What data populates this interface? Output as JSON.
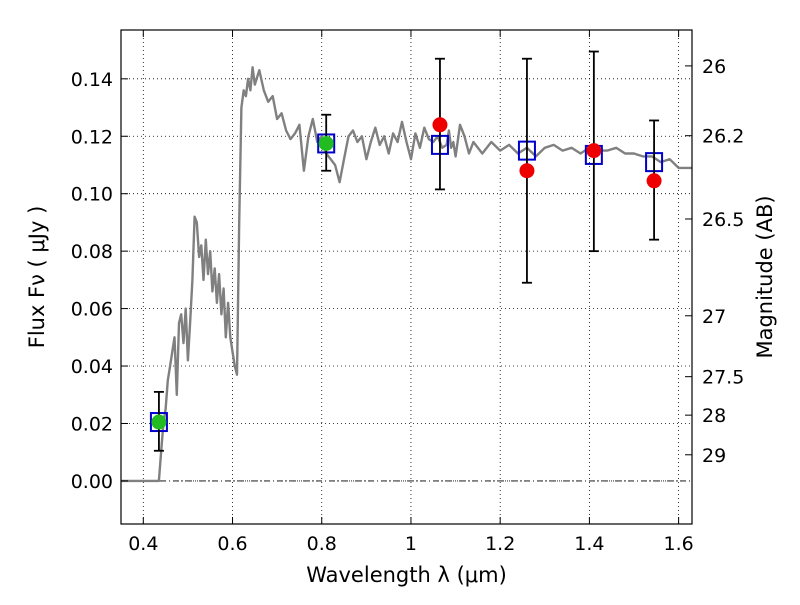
{
  "chart_data": {
    "type": "scatter",
    "xlabel": "Wavelength  λ (μm)",
    "ylabel": "Flux  Fν  ( μJy )",
    "right_ylabel": "Magnitude (AB)",
    "xlim": [
      0.35,
      1.63
    ],
    "ylim": [
      -0.015,
      0.157
    ],
    "grid": true,
    "x_ticks": [
      0.4,
      0.6,
      0.8,
      1.0,
      1.2,
      1.4,
      1.6
    ],
    "x_tick_labels": [
      "0.4",
      "0.6",
      "0.8",
      "1",
      "1.2",
      "1.4",
      "1.6"
    ],
    "y_ticks": [
      0.0,
      0.02,
      0.04,
      0.06,
      0.08,
      0.1,
      0.12,
      0.14
    ],
    "y_tick_labels": [
      "0.00",
      "0.02",
      "0.04",
      "0.06",
      "0.08",
      "0.10",
      "0.12",
      "0.14"
    ],
    "right_ticks": [
      {
        "label": "26",
        "flux": 0.1445
      },
      {
        "label": "26.2",
        "flux": 0.1202
      },
      {
        "label": "26.5",
        "flux": 0.0912
      },
      {
        "label": "27",
        "flux": 0.0575
      },
      {
        "label": "27.5",
        "flux": 0.0363
      },
      {
        "label": "28",
        "flux": 0.0229
      },
      {
        "label": "29",
        "flux": 0.0091
      }
    ],
    "zero_line": 0.0,
    "series": [
      {
        "style": "line",
        "color": "#808080",
        "x": [
          0.35,
          0.38,
          0.4,
          0.42,
          0.43,
          0.435,
          0.44,
          0.445,
          0.45,
          0.455,
          0.46,
          0.465,
          0.47,
          0.475,
          0.48,
          0.485,
          0.49,
          0.495,
          0.5,
          0.505,
          0.51,
          0.515,
          0.52,
          0.525,
          0.53,
          0.535,
          0.54,
          0.545,
          0.55,
          0.555,
          0.56,
          0.565,
          0.57,
          0.575,
          0.58,
          0.585,
          0.59,
          0.595,
          0.6,
          0.605,
          0.61,
          0.615,
          0.62,
          0.625,
          0.63,
          0.635,
          0.64,
          0.645,
          0.65,
          0.66,
          0.67,
          0.68,
          0.69,
          0.7,
          0.71,
          0.72,
          0.73,
          0.74,
          0.75,
          0.76,
          0.77,
          0.78,
          0.79,
          0.8,
          0.81,
          0.82,
          0.83,
          0.84,
          0.85,
          0.86,
          0.87,
          0.88,
          0.89,
          0.9,
          0.91,
          0.92,
          0.93,
          0.94,
          0.95,
          0.96,
          0.97,
          0.98,
          0.99,
          1.0,
          1.01,
          1.02,
          1.03,
          1.04,
          1.05,
          1.06,
          1.07,
          1.08,
          1.085,
          1.09,
          1.095,
          1.1,
          1.11,
          1.12,
          1.13,
          1.14,
          1.16,
          1.18,
          1.2,
          1.22,
          1.24,
          1.26,
          1.28,
          1.3,
          1.32,
          1.34,
          1.36,
          1.38,
          1.4,
          1.42,
          1.44,
          1.46,
          1.48,
          1.5,
          1.52,
          1.54,
          1.56,
          1.58,
          1.6,
          1.62,
          1.63
        ],
        "y": [
          0.0,
          0.0,
          0.0,
          0.0,
          0.0,
          0.0,
          0.01,
          0.02,
          0.025,
          0.035,
          0.04,
          0.045,
          0.05,
          0.03,
          0.055,
          0.058,
          0.048,
          0.06,
          0.042,
          0.055,
          0.07,
          0.092,
          0.09,
          0.078,
          0.082,
          0.07,
          0.084,
          0.072,
          0.08,
          0.066,
          0.074,
          0.062,
          0.072,
          0.058,
          0.067,
          0.05,
          0.062,
          0.05,
          0.045,
          0.04,
          0.037,
          0.09,
          0.13,
          0.136,
          0.134,
          0.14,
          0.136,
          0.144,
          0.138,
          0.143,
          0.136,
          0.132,
          0.134,
          0.126,
          0.128,
          0.122,
          0.119,
          0.121,
          0.124,
          0.108,
          0.12,
          0.126,
          0.118,
          0.12,
          0.114,
          0.112,
          0.11,
          0.104,
          0.112,
          0.12,
          0.122,
          0.118,
          0.12,
          0.112,
          0.118,
          0.123,
          0.117,
          0.12,
          0.114,
          0.121,
          0.118,
          0.125,
          0.118,
          0.112,
          0.121,
          0.116,
          0.123,
          0.119,
          0.118,
          0.12,
          0.116,
          0.117,
          0.122,
          0.116,
          0.118,
          0.113,
          0.124,
          0.12,
          0.114,
          0.118,
          0.114,
          0.118,
          0.115,
          0.117,
          0.114,
          0.116,
          0.113,
          0.116,
          0.117,
          0.115,
          0.116,
          0.114,
          0.116,
          0.115,
          0.115,
          0.116,
          0.114,
          0.114,
          0.113,
          0.113,
          0.111,
          0.112,
          0.109,
          0.109,
          0.109
        ]
      },
      {
        "style": "squares",
        "color": "#0000cc",
        "x": [
          0.435,
          0.81,
          1.065,
          1.26,
          1.41,
          1.545
        ],
        "y": [
          0.0205,
          0.1175,
          0.117,
          0.115,
          0.1135,
          0.111
        ]
      },
      {
        "style": "circles",
        "color": "#22bb22",
        "x": [
          0.435,
          0.81
        ],
        "y": [
          0.0205,
          0.1175
        ]
      },
      {
        "style": "circles",
        "color": "#ee0000",
        "x": [
          1.065,
          1.26,
          1.41,
          1.545
        ],
        "y": [
          0.124,
          0.108,
          0.115,
          0.1045
        ]
      },
      {
        "style": "errorbars",
        "color": "#000000",
        "x": [
          0.435,
          0.81,
          1.065,
          1.26,
          1.41,
          1.545
        ],
        "low": [
          0.0105,
          0.108,
          0.1015,
          0.069,
          0.08,
          0.084
        ],
        "high": [
          0.031,
          0.1275,
          0.147,
          0.147,
          0.1495,
          0.1255
        ]
      }
    ]
  }
}
